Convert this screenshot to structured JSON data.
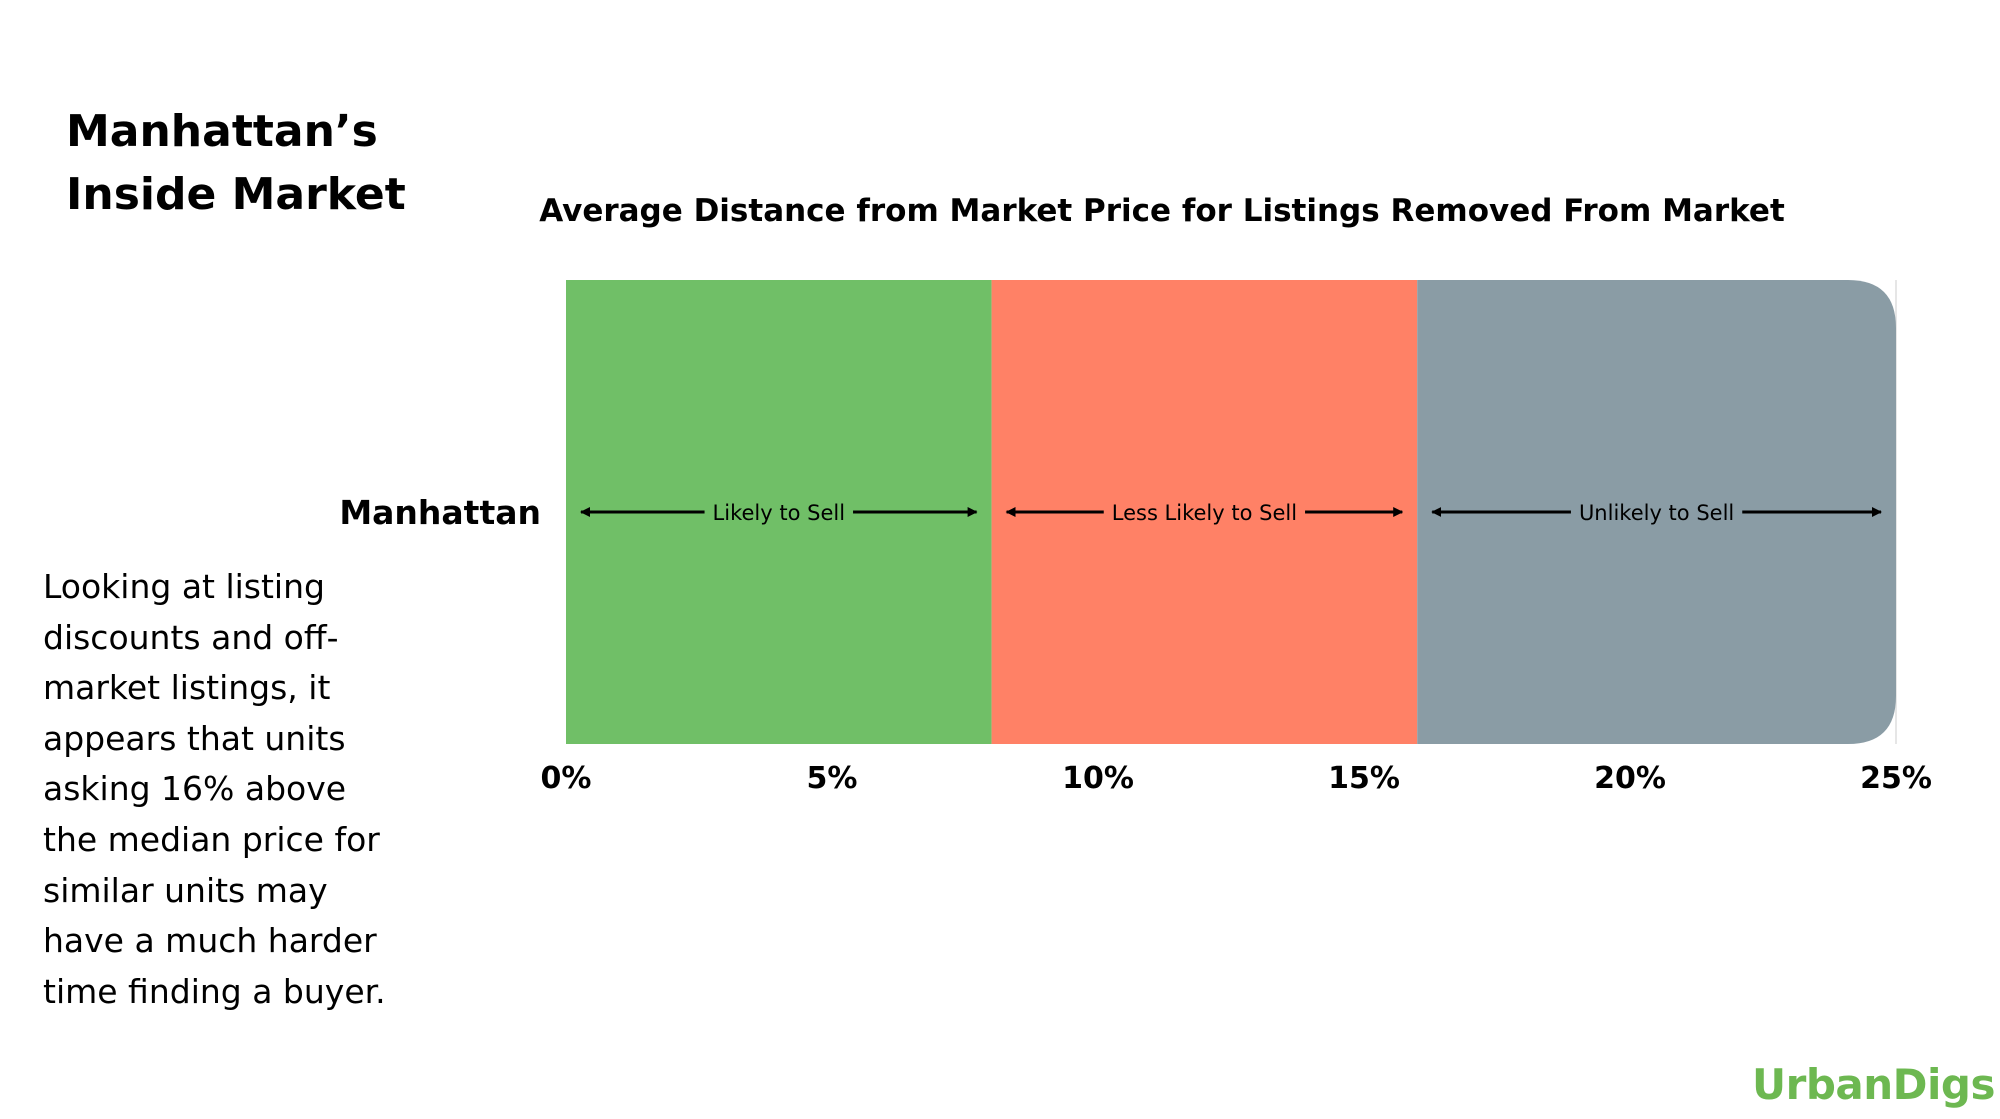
{
  "page": {
    "title_lines": [
      "Manhattan’s",
      "Inside Market"
    ],
    "description_lines": [
      "Looking at listing",
      "discounts and off-",
      "market listings, it",
      "appears that units",
      "asking 16% above",
      "the median price for",
      "similar units may",
      "have a much harder",
      "time finding a buyer."
    ],
    "logo_text": "UrbanDigs"
  },
  "chart_data": {
    "type": "bar",
    "orientation": "horizontal-stacked-ranges",
    "title": "Average Distance from Market Price for Listings Removed From Market",
    "categories": [
      "Manhattan"
    ],
    "xlim": [
      0,
      25
    ],
    "x_ticks": [
      0,
      5,
      10,
      15,
      20,
      25
    ],
    "x_tick_labels": [
      "0%",
      "5%",
      "10%",
      "15%",
      "20%",
      "25%"
    ],
    "grid": false,
    "legend": "none",
    "segments": [
      {
        "label": "Likely to Sell",
        "start": 0,
        "end": 8,
        "color": "#70bf67"
      },
      {
        "label": "Less Likely to Sell",
        "start": 8,
        "end": 16,
        "color": "#ff8166"
      },
      {
        "label": "Unlikely to Sell",
        "start": 16,
        "end": 25,
        "color": "#8a9ca5"
      }
    ]
  }
}
